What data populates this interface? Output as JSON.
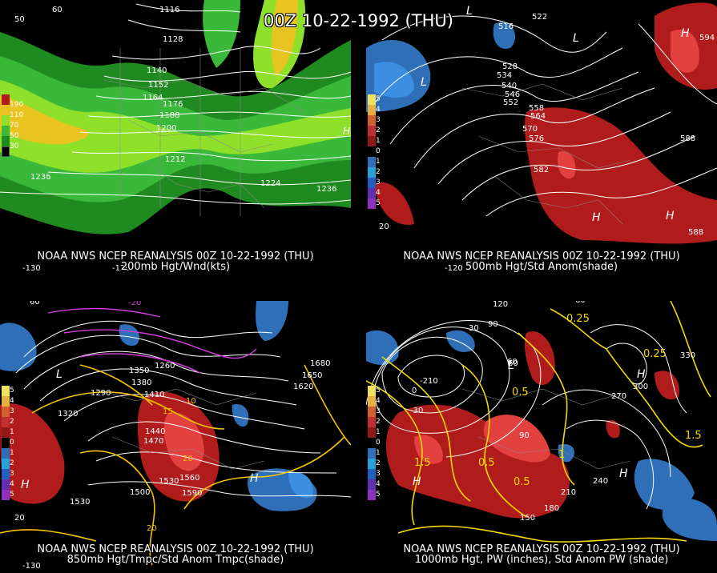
{
  "title": "00Z 10-22-1992 (THU)",
  "colors": {
    "contour": "#ffffff",
    "temp": "#f4c300",
    "magenta": "#d23cdc",
    "anom_pos": "#b01c1c",
    "anom_pos_strong": "#e34040",
    "anom_neg": "#2f6fb8",
    "anom_neg_strong": "#3b8ee0",
    "wind_dark": "#1f8a1f",
    "wind_mid": "#39b839",
    "wind_light": "#8fe02a",
    "wind_yellow": "#e8c420",
    "map_lines": "#8a8a8a"
  },
  "panels": [
    {
      "id": "200mb",
      "caption_line1": "NOAA NWS NCEP REANALYSIS 00Z 10-22-1992 (THU)",
      "caption_line2": "200mb Hgt/Wnd(kts)",
      "legend_labels": [
        "190",
        "110",
        "70",
        "50",
        "30"
      ],
      "contour_labels": [
        "1116",
        "1128",
        "1140",
        "1152",
        "1164",
        "1176",
        "1188",
        "1200",
        "1212",
        "1224",
        "1236",
        "1236"
      ],
      "edge_labels": [
        "50",
        "60",
        "-130",
        "-120",
        "H"
      ]
    },
    {
      "id": "500mb",
      "caption_line1": "NOAA NWS NCEP REANALYSIS 00Z 10-22-1992 (THU)",
      "caption_line2": "500mb Hgt/Std Anom(shade)",
      "legend_labels": [
        "5",
        "4",
        "3",
        "2",
        "1",
        "0",
        "1",
        "2",
        "3",
        "4",
        "5"
      ],
      "contour_labels": [
        "516",
        "522",
        "528",
        "534",
        "540",
        "546",
        "552",
        "558",
        "564",
        "570",
        "576",
        "582",
        "588",
        "588",
        "594"
      ],
      "edge_labels": [
        "L",
        "L",
        "L",
        "H",
        "H",
        "H",
        "20",
        "-120"
      ]
    },
    {
      "id": "850mb",
      "caption_line1": "NOAA NWS NCEP REANALYSIS 00Z 10-22-1992 (THU)",
      "caption_line2": "850mb Hgt/Tmpc/Std Anom Tmpc(shade)",
      "legend_labels": [
        "5",
        "4",
        "3",
        "2",
        "1",
        "0",
        "1",
        "2",
        "3",
        "4",
        "5"
      ],
      "contour_labels": [
        "1350",
        "1380",
        "1410",
        "1260",
        "1290",
        "1320",
        "1440",
        "1470",
        "1500",
        "1530",
        "1560",
        "1590",
        "1620",
        "1650",
        "1680",
        "1530"
      ],
      "temp_labels": [
        "-20",
        "10",
        "15",
        "20",
        "20"
      ],
      "edge_labels": [
        "60",
        "H",
        "H",
        "L",
        "-130",
        "20"
      ]
    },
    {
      "id": "1000mb",
      "caption_line1": "NOAA NWS NCEP REANALYSIS 00Z 10-22-1992 (THU)",
      "caption_line2": "1000mb Hgt, PW (inches), Std Anom PW (shade)",
      "legend_labels": [
        "5",
        "4",
        "3",
        "2",
        "1",
        "0",
        "1",
        "2",
        "3",
        "4",
        "5"
      ],
      "contour_labels": [
        "120",
        "90",
        "60",
        "30",
        "-210",
        "0",
        "-30",
        "90",
        "150",
        "180",
        "210",
        "240",
        "270",
        "300",
        "330",
        "60"
      ],
      "pw_labels": [
        "0.25",
        "0.25",
        "0.5",
        "0.5",
        "1",
        "1.5",
        "1.5",
        "0.5"
      ],
      "edge_labels": [
        "60",
        "L",
        "H",
        "H",
        "H"
      ]
    }
  ]
}
